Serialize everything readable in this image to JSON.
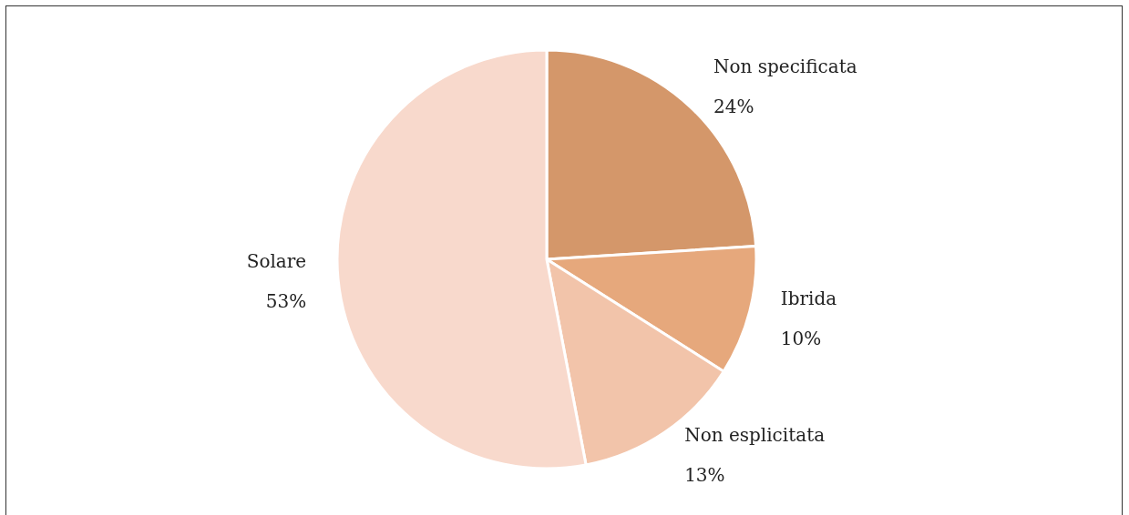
{
  "chart_data": {
    "type": "pie",
    "categories": [
      "Non specificata",
      "Ibrida",
      "Non esplicitata",
      "Solare"
    ],
    "values": [
      24,
      10,
      13,
      53
    ],
    "colors": [
      "#d4976a",
      "#e6a87c",
      "#f2c4aa",
      "#f8d9cc"
    ],
    "value_labels": [
      "24%",
      "10%",
      "13%",
      "53%"
    ]
  }
}
